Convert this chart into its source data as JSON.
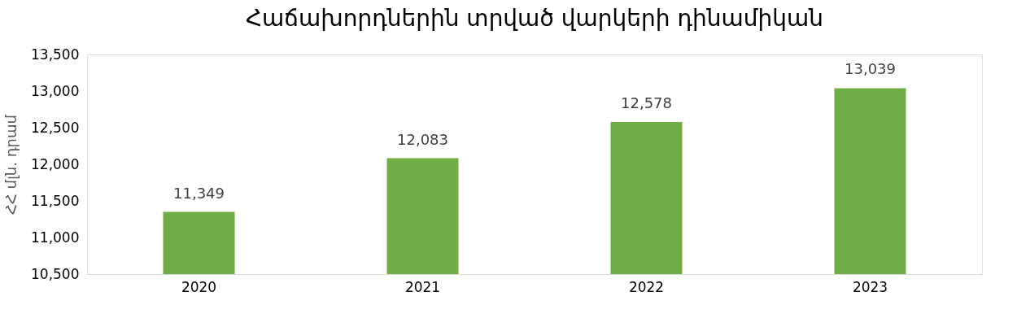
{
  "chart_data": {
    "type": "bar",
    "title": "Հաճախորդներին տրված վարկերի դինամիկան",
    "ylabel": "ՀՀ մլն. դրամ",
    "categories": [
      "2020",
      "2021",
      "2022",
      "2023"
    ],
    "values": [
      11349,
      12083,
      12578,
      13039
    ],
    "value_labels": [
      "11,349",
      "12,083",
      "12,578",
      "13,039"
    ],
    "color": "#70ad47",
    "ylim": [
      10500,
      13500
    ],
    "yticks": [
      {
        "value": 10500,
        "label": "10,500"
      },
      {
        "value": 11000,
        "label": "11,000"
      },
      {
        "value": 11500,
        "label": "11,500"
      },
      {
        "value": 12000,
        "label": "12,000"
      },
      {
        "value": 12500,
        "label": "12,500"
      },
      {
        "value": 13000,
        "label": "13,000"
      },
      {
        "value": 13500,
        "label": "13,500"
      }
    ],
    "grid": false
  }
}
